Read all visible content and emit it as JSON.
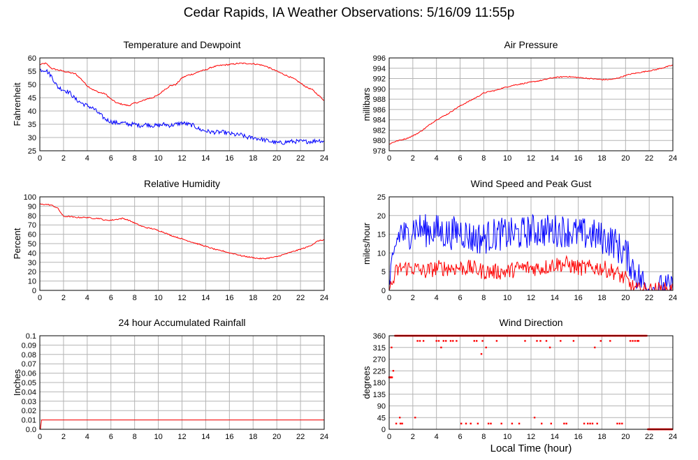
{
  "page": {
    "title": "Cedar Rapids, IA Weather Observations: 5/16/09 11:55p",
    "xlabel": "Local Time (hour)"
  },
  "colors": {
    "red": "#ff0000",
    "blue": "#0000ff",
    "grid": "#b4b4b4",
    "frame": "#000000"
  },
  "chart_data": [
    {
      "type": "line",
      "title": "Temperature and Dewpoint",
      "ylabel": "Fahrenheit",
      "xlim": [
        0,
        24
      ],
      "ylim": [
        25,
        60
      ],
      "xticks": [
        0,
        2,
        4,
        6,
        8,
        10,
        12,
        14,
        16,
        18,
        20,
        22,
        24
      ],
      "yticks": [
        25,
        30,
        35,
        40,
        45,
        50,
        55,
        60
      ],
      "series": [
        {
          "color": "#ff0000",
          "noise": 0.25,
          "x": [
            0,
            0.5,
            1,
            1.5,
            2,
            2.5,
            3,
            3.5,
            4,
            4.5,
            5,
            5.5,
            6,
            6.5,
            7,
            7.5,
            8,
            8.5,
            9,
            9.5,
            10,
            10.5,
            11,
            11.5,
            12,
            12.5,
            13,
            13.5,
            14,
            14.5,
            15,
            15.5,
            16,
            16.5,
            17,
            17.5,
            18,
            18.5,
            19,
            19.5,
            20,
            20.5,
            21,
            21.5,
            22,
            22.5,
            23,
            23.5,
            24
          ],
          "values": [
            57.5,
            58,
            56,
            55.5,
            55,
            54.5,
            54,
            52,
            49.5,
            48,
            47,
            46.5,
            44.5,
            43,
            42.5,
            42,
            43,
            43.5,
            44.5,
            45,
            46,
            48,
            49.5,
            50,
            52.5,
            53.5,
            54,
            55,
            55.5,
            56.5,
            57,
            57.3,
            57.5,
            57.8,
            58,
            57.9,
            57.8,
            57.5,
            57,
            56,
            55,
            54,
            53,
            52,
            50.5,
            49,
            48,
            46,
            44
          ]
        },
        {
          "color": "#0000ff",
          "noise": 0.8,
          "x": [
            0,
            0.5,
            1,
            1.5,
            2,
            2.5,
            3,
            3.5,
            4,
            4.5,
            5,
            5.5,
            6,
            6.5,
            7,
            7.5,
            8,
            8.5,
            9,
            9.5,
            10,
            10.5,
            11,
            11.5,
            12,
            12.5,
            13,
            13.5,
            14,
            14.5,
            15,
            15.5,
            16,
            16.5,
            17,
            17.5,
            18,
            18.5,
            19,
            19.5,
            20,
            20.5,
            21,
            21.5,
            22,
            22.5,
            23,
            23.5,
            24
          ],
          "values": [
            55.5,
            55.5,
            53,
            49,
            48,
            47,
            44.5,
            43,
            42,
            41,
            39,
            37,
            36,
            35.5,
            35.5,
            35,
            35,
            34.5,
            35,
            34.5,
            34.5,
            35,
            34.5,
            35,
            35.5,
            35,
            34.5,
            33,
            32.5,
            32,
            32,
            32,
            31.5,
            31,
            31,
            30,
            30,
            29.5,
            29,
            28.5,
            28,
            28,
            28.5,
            28.5,
            28.5,
            28.5,
            28.5,
            29,
            28.5
          ]
        }
      ]
    },
    {
      "type": "line",
      "title": "Air Pressure",
      "ylabel": "millibars",
      "xlim": [
        0,
        24
      ],
      "ylim": [
        978,
        996
      ],
      "xticks": [
        0,
        2,
        4,
        6,
        8,
        10,
        12,
        14,
        16,
        18,
        20,
        22,
        24
      ],
      "yticks": [
        978,
        980,
        982,
        984,
        986,
        988,
        990,
        992,
        994,
        996
      ],
      "series": [
        {
          "color": "#ff0000",
          "noise": 0.1,
          "x": [
            0,
            0.5,
            1,
            1.5,
            2,
            2.5,
            3,
            3.5,
            4,
            4.5,
            5,
            5.5,
            6,
            6.5,
            7,
            7.5,
            8,
            8.5,
            9,
            9.5,
            10,
            10.5,
            11,
            11.5,
            12,
            12.5,
            13,
            13.5,
            14,
            14.5,
            15,
            15.5,
            16,
            16.5,
            17,
            17.5,
            18,
            18.5,
            19,
            19.5,
            20,
            20.5,
            21,
            21.5,
            22,
            22.5,
            23,
            23.5,
            24
          ],
          "values": [
            979.3,
            979.8,
            980.1,
            980.4,
            980.9,
            981.5,
            982.3,
            983.2,
            984,
            984.6,
            985.2,
            986,
            986.7,
            987.3,
            987.9,
            988.5,
            989.2,
            989.5,
            989.7,
            990.1,
            990.4,
            990.7,
            990.9,
            991.1,
            991.3,
            991.5,
            991.7,
            992,
            992.2,
            992.3,
            992.4,
            992.3,
            992.2,
            992.1,
            992,
            991.9,
            991.8,
            991.8,
            991.9,
            992.2,
            992.6,
            992.9,
            993.1,
            993.3,
            993.5,
            993.7,
            994,
            994.3,
            994.6
          ]
        }
      ]
    },
    {
      "type": "line",
      "title": "Relative Humidity",
      "ylabel": "Percent",
      "xlim": [
        0,
        24
      ],
      "ylim": [
        0,
        100
      ],
      "xticks": [
        0,
        2,
        4,
        6,
        8,
        10,
        12,
        14,
        16,
        18,
        20,
        22,
        24
      ],
      "yticks": [
        0,
        10,
        20,
        30,
        40,
        50,
        60,
        70,
        80,
        90,
        100
      ],
      "series": [
        {
          "color": "#ff0000",
          "noise": 0.6,
          "x": [
            0,
            0.5,
            1,
            1.5,
            2,
            2.5,
            3,
            3.5,
            4,
            4.5,
            5,
            5.5,
            6,
            6.5,
            7,
            7.5,
            8,
            8.5,
            9,
            9.5,
            10,
            10.5,
            11,
            11.5,
            12,
            12.5,
            13,
            13.5,
            14,
            14.5,
            15,
            15.5,
            16,
            16.5,
            17,
            17.5,
            18,
            18.5,
            19,
            19.5,
            20,
            20.5,
            21,
            21.5,
            22,
            22.5,
            23,
            23.5,
            24
          ],
          "values": [
            92,
            92,
            91,
            88,
            79,
            79,
            78,
            78,
            78,
            77,
            77,
            75,
            75,
            76,
            77,
            75,
            72,
            69,
            67,
            66,
            64,
            62,
            59,
            57,
            55,
            53,
            51,
            49,
            47,
            45,
            43,
            42,
            40,
            39,
            37,
            36,
            35,
            34,
            34,
            35,
            36,
            38,
            40,
            42,
            44,
            46,
            49,
            53,
            54
          ]
        }
      ]
    },
    {
      "type": "line",
      "title": "Wind Speed and Peak Gust",
      "ylabel": "miles/hour",
      "xlim": [
        0,
        24
      ],
      "ylim": [
        0,
        25
      ],
      "xticks": [
        0,
        2,
        4,
        6,
        8,
        10,
        12,
        14,
        16,
        18,
        20,
        22,
        24
      ],
      "yticks": [
        0,
        5,
        10,
        15,
        20,
        25
      ],
      "series": [
        {
          "color": "#0000ff",
          "noise": 4.5,
          "x": [
            0,
            0.3,
            0.6,
            1,
            1.5,
            2,
            3,
            4,
            5,
            6,
            7,
            8,
            9,
            10,
            11,
            12,
            13,
            14,
            15,
            16,
            17,
            18,
            19,
            19.5,
            20,
            20.5,
            21,
            21.5,
            22,
            22.5,
            23,
            24
          ],
          "values": [
            2,
            6,
            13,
            16,
            14,
            17,
            16,
            16,
            15,
            16,
            14,
            14,
            15,
            15,
            15,
            16,
            16,
            16,
            16,
            15,
            15,
            14,
            13,
            11,
            10,
            7,
            4,
            2,
            0,
            0,
            0,
            0
          ]
        },
        {
          "color": "#ff0000",
          "noise": 2.2,
          "x": [
            0,
            0.3,
            0.6,
            1,
            2,
            3,
            4,
            5,
            6,
            7,
            8,
            9,
            10,
            11,
            12,
            13,
            14,
            15,
            16,
            17,
            18,
            19,
            19.5,
            20,
            20.5,
            21,
            21.5,
            22,
            24
          ],
          "values": [
            0,
            2,
            5,
            6,
            6,
            5,
            6,
            6,
            6,
            6,
            5,
            5,
            5,
            6,
            6,
            6,
            7,
            7,
            6,
            6,
            6,
            5,
            4,
            3,
            1,
            0,
            0,
            0,
            0
          ]
        }
      ]
    },
    {
      "type": "line",
      "title": "24 hour Accumulated Rainfall",
      "ylabel": "Inches",
      "xlim": [
        0,
        24
      ],
      "ylim": [
        0,
        0.1
      ],
      "xticks": [
        0,
        2,
        4,
        6,
        8,
        10,
        12,
        14,
        16,
        18,
        20,
        22,
        24
      ],
      "yticks": [
        0.0,
        0.01,
        0.02,
        0.03,
        0.04,
        0.05,
        0.06,
        0.07,
        0.08,
        0.09,
        0.1
      ],
      "yticklabels": [
        "0.0",
        "0.01",
        "0.02",
        "0.03",
        "0.04",
        "0.05",
        "0.06",
        "0.07",
        "0.08",
        "0.09",
        "0.1"
      ],
      "series": [
        {
          "color": "#ff0000",
          "noise": 0,
          "x": [
            0,
            0.05,
            0.15,
            24
          ],
          "values": [
            0,
            0,
            0.01,
            0.01
          ]
        }
      ]
    },
    {
      "type": "scatter",
      "title": "Wind Direction",
      "ylabel": "degrees",
      "xlim": [
        0,
        24
      ],
      "ylim": [
        0,
        360
      ],
      "xticks": [
        0,
        2,
        4,
        6,
        8,
        10,
        12,
        14,
        16,
        18,
        20,
        22,
        24
      ],
      "yticks": [
        0,
        45,
        90,
        135,
        180,
        225,
        270,
        315,
        360
      ],
      "series": [
        {
          "color": "#ff0000",
          "bands": [
            {
              "y": 360,
              "ranges": [
                [
                  0.5,
                  21.8
                ]
              ],
              "step": 0.07
            },
            {
              "y": 0,
              "ranges": [
                [
                  21.9,
                  24
                ]
              ],
              "step": 0.05
            },
            {
              "y": 200,
              "ranges": [
                [
                  0,
                  0.25
                ]
              ],
              "step": 0.04
            }
          ],
          "points": [
            [
              0.2,
              315
            ],
            [
              0.35,
              225
            ],
            [
              0.6,
              22
            ],
            [
              0.9,
              45
            ],
            [
              0.95,
              22
            ],
            [
              1.1,
              22
            ],
            [
              2.2,
              45
            ],
            [
              2.4,
              340
            ],
            [
              2.6,
              340
            ],
            [
              2.9,
              340
            ],
            [
              4.0,
              340
            ],
            [
              4.2,
              340
            ],
            [
              4.4,
              315
            ],
            [
              4.6,
              340
            ],
            [
              4.8,
              340
            ],
            [
              5.2,
              340
            ],
            [
              5.4,
              340
            ],
            [
              5.7,
              340
            ],
            [
              6.1,
              22
            ],
            [
              6.5,
              22
            ],
            [
              6.9,
              22
            ],
            [
              7.2,
              340
            ],
            [
              7.4,
              340
            ],
            [
              7.5,
              22
            ],
            [
              7.8,
              290
            ],
            [
              7.9,
              340
            ],
            [
              8.2,
              315
            ],
            [
              8.4,
              22
            ],
            [
              8.6,
              22
            ],
            [
              9.1,
              340
            ],
            [
              9.5,
              22
            ],
            [
              10.4,
              22
            ],
            [
              11.0,
              22
            ],
            [
              11.5,
              340
            ],
            [
              12.3,
              45
            ],
            [
              12.5,
              340
            ],
            [
              12.8,
              340
            ],
            [
              12.9,
              22
            ],
            [
              13.3,
              340
            ],
            [
              13.6,
              315
            ],
            [
              13.7,
              22
            ],
            [
              14.5,
              340
            ],
            [
              14.8,
              22
            ],
            [
              15.0,
              22
            ],
            [
              15.6,
              340
            ],
            [
              16.5,
              22
            ],
            [
              16.8,
              22
            ],
            [
              17.0,
              22
            ],
            [
              17.2,
              22
            ],
            [
              17.4,
              315
            ],
            [
              17.6,
              22
            ],
            [
              17.9,
              340
            ],
            [
              18.7,
              340
            ],
            [
              19.3,
              22
            ],
            [
              19.5,
              22
            ],
            [
              19.7,
              22
            ],
            [
              20.4,
              340
            ],
            [
              20.6,
              340
            ],
            [
              20.8,
              340
            ],
            [
              21.0,
              340
            ],
            [
              21.1,
              340
            ]
          ]
        }
      ]
    }
  ]
}
